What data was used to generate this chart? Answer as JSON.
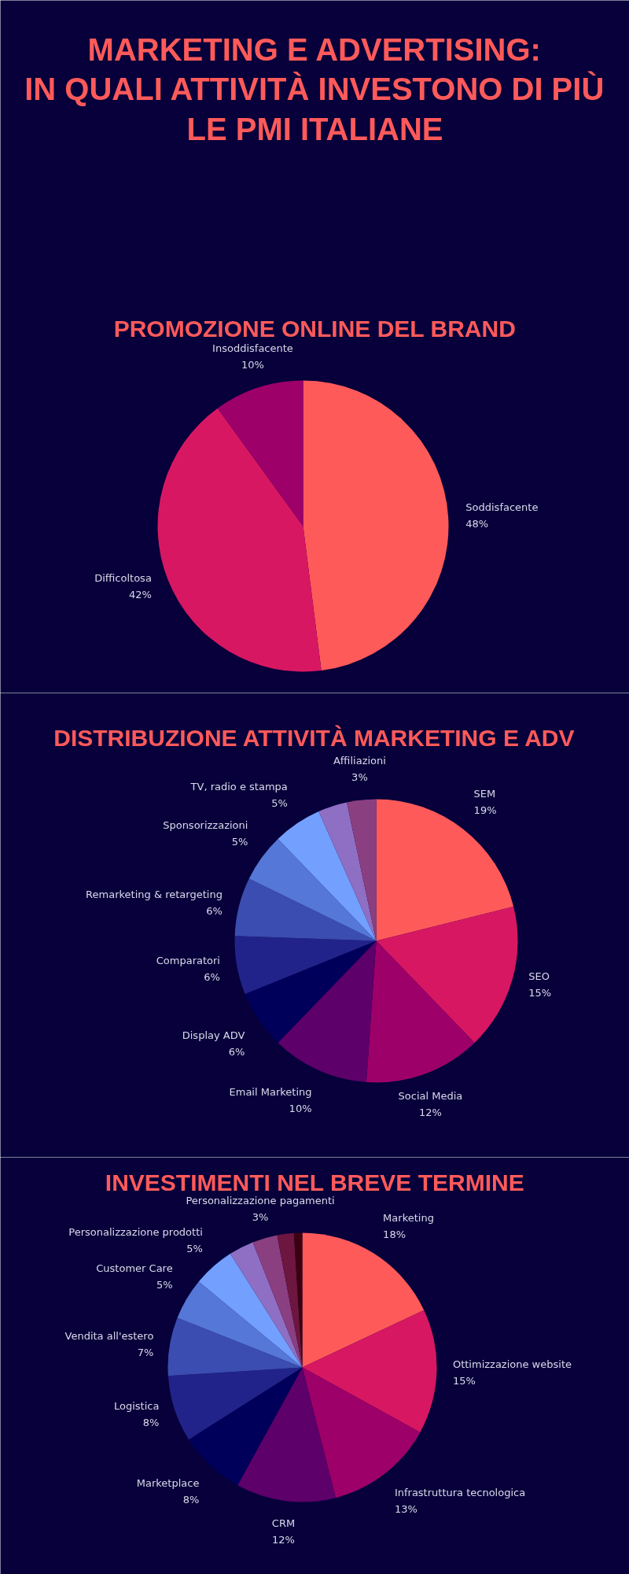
{
  "chart_data": [
    {
      "type": "pie",
      "title": "MARKETING E ADVERTISING:\nIN QUALI ATTIVITÀ INVESTONO DI PIÙ\nLE PMI ITALIANE",
      "subtitle": "PROMOZIONE ONLINE DEL BRAND",
      "categories": [
        "Soddisfacente",
        "Difficoltosa",
        "Insoddisfacente"
      ],
      "values": [
        48,
        42,
        10
      ],
      "colors": [
        "#ff5a5a",
        "#d81763",
        "#9e006a"
      ],
      "value_labels": [
        "48%",
        "42%",
        "10%"
      ]
    },
    {
      "type": "pie",
      "title": "DISTRIBUZIONE ATTIVITÀ MARKETING E ADV",
      "categories": [
        "SEM",
        "SEO",
        "Social Media",
        "Email Marketing",
        "Display ADV",
        "Comparatori",
        "Remarketing & retargeting",
        "Sponsorizzazioni",
        "TV, radio e stampa",
        null,
        "Affiliazioni"
      ],
      "values": [
        19,
        15,
        12,
        10,
        6,
        6,
        6,
        5,
        5,
        3,
        3
      ],
      "colors": [
        "#ff5a5a",
        "#d81763",
        "#9e006a",
        "#5d006a",
        "#00005a",
        "#22238a",
        "#3b4db0",
        "#5577d8",
        "#739fff",
        "#8e6fc4",
        "#8a3f80"
      ],
      "value_labels": [
        "19%",
        "15%",
        "12%",
        "10%",
        "6%",
        "6%",
        "6%",
        "5%",
        "5%",
        null,
        "3%"
      ]
    },
    {
      "type": "pie",
      "title": "INVESTIMENTI NEL BREVE TERMINE",
      "categories": [
        "Marketing",
        "Ottimizzazione website",
        "Infrastruttura tecnologica",
        "CRM",
        "Marketplace",
        "Logistica",
        "Vendita all'estero",
        "Customer Care",
        "Personalizzazione prodotti",
        null,
        "Personalizzazione pagamenti",
        null,
        null
      ],
      "values": [
        18,
        15,
        13,
        12,
        8,
        8,
        7,
        5,
        5,
        3,
        3,
        2,
        1
      ],
      "colors": [
        "#ff5a5a",
        "#d81763",
        "#9e006a",
        "#5d006a",
        "#00005a",
        "#22238a",
        "#3b4db0",
        "#5577d8",
        "#739fff",
        "#8e6fc4",
        "#8a3f80",
        "#6c1640",
        "#3d0010"
      ],
      "value_labels": [
        "18%",
        "15%",
        "13%",
        "12%",
        "8%",
        "8%",
        "7%",
        "5%",
        "5%",
        null,
        "3%",
        null,
        null
      ]
    }
  ]
}
